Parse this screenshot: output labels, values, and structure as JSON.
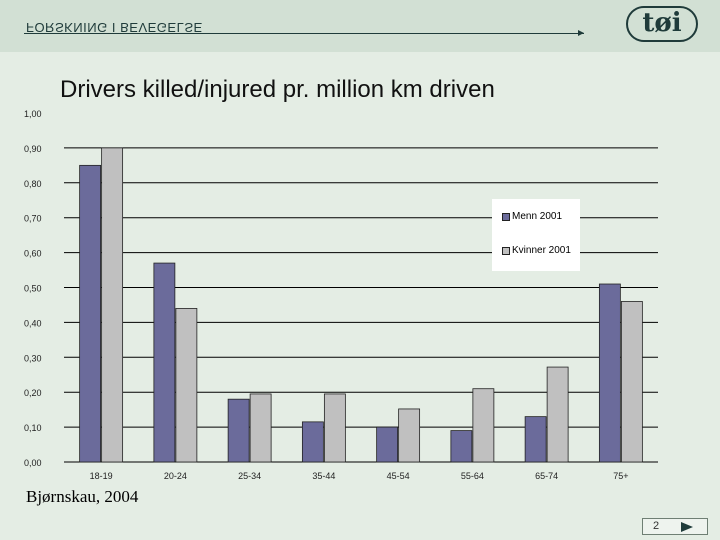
{
  "header": {
    "section_text": "FORSKNING I BEVEGELSE",
    "logo_text": "tøi"
  },
  "footer": {
    "source": "Bjørnskau, 2004",
    "page_number": "2",
    "next_icon": "triangle-right-icon"
  },
  "colors": {
    "background": "#e4ede4",
    "header_band": "#d2e0d4",
    "menn": "#6b6b9b",
    "kvinner": "#c0c0c0"
  },
  "chart_data": {
    "type": "bar",
    "title": "Drivers killed/injured pr. million km driven",
    "xlabel": "",
    "ylabel": "",
    "categories": [
      "18-19",
      "20-24",
      "25-34",
      "35-44",
      "45-54",
      "55-64",
      "65-74",
      "75+"
    ],
    "series": [
      {
        "name": "Menn 2001",
        "values": [
          0.85,
          0.57,
          0.18,
          0.115,
          0.1,
          0.09,
          0.13,
          0.51
        ]
      },
      {
        "name": "Kvinner 2001",
        "values": [
          0.9,
          0.44,
          0.195,
          0.195,
          0.152,
          0.21,
          0.272,
          0.46
        ]
      }
    ],
    "yticks": [
      "0,00",
      "0,10",
      "0,20",
      "0,30",
      "0,40",
      "0,50",
      "0,60",
      "0,70",
      "0,80",
      "0,90",
      "1,00"
    ],
    "ylim": [
      0,
      1
    ],
    "grid": true,
    "legend": "right"
  }
}
